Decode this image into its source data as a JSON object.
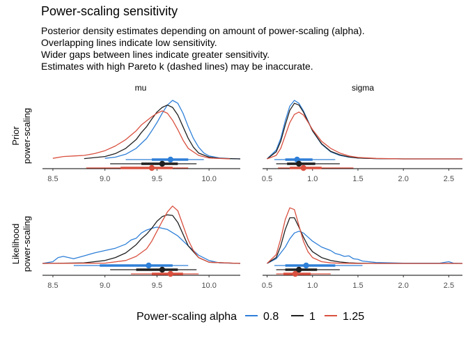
{
  "chart_data": {
    "type": "line",
    "title": "Power-scaling sensitivity",
    "subtitle": [
      "Posterior density estimates depending on amount of power-scaling (alpha).",
      "Overlapping lines indicate low sensitivity.",
      "Wider gaps between lines indicate greater sensitivity.",
      "Estimates with high Pareto k (dashed lines) may be inaccurate."
    ],
    "legend": {
      "title": "Power-scaling alpha",
      "position": "bottom",
      "entries": [
        {
          "label": "0.8",
          "color": "#2e7fd8"
        },
        {
          "label": "1",
          "color": "#1f1f1f"
        },
        {
          "label": "1.25",
          "color": "#d9503f"
        }
      ]
    },
    "columns": [
      {
        "label": "mu",
        "xlim": [
          8.4,
          10.3
        ],
        "xticks": [
          8.5,
          9.0,
          9.5,
          10.0
        ],
        "xticklabels": [
          "8.5",
          "9.0",
          "9.5",
          "10.0"
        ]
      },
      {
        "label": "sigma",
        "xlim": [
          0.45,
          2.65
        ],
        "xticks": [
          0.5,
          1.0,
          1.5,
          2.0,
          2.5
        ],
        "xticklabels": [
          "0.5",
          "1.0",
          "1.5",
          "2.0",
          "2.5"
        ]
      }
    ],
    "rows": [
      {
        "label": "Prior power-scaling",
        "label_lines": [
          "Prior",
          "power-scaling"
        ]
      },
      {
        "label": "Likelihood power-scaling",
        "label_lines": [
          "Likelihood",
          "power-scaling"
        ]
      }
    ],
    "panels": [
      {
        "row": 0,
        "col": 0,
        "series": [
          {
            "alpha": "0.8",
            "x": [
              9.0,
              9.1,
              9.2,
              9.3,
              9.4,
              9.45,
              9.5,
              9.55,
              9.6,
              9.65,
              9.7,
              9.75,
              9.8,
              9.85,
              9.9,
              9.95,
              10.0,
              10.1,
              10.2,
              10.3
            ],
            "y": [
              0.01,
              0.03,
              0.08,
              0.18,
              0.35,
              0.48,
              0.62,
              0.78,
              0.92,
              1.0,
              0.95,
              0.78,
              0.55,
              0.35,
              0.2,
              0.1,
              0.05,
              0.015,
              0.005,
              0.0
            ]
          },
          {
            "alpha": "1",
            "x": [
              8.8,
              9.0,
              9.1,
              9.2,
              9.3,
              9.35,
              9.4,
              9.45,
              9.5,
              9.55,
              9.6,
              9.65,
              9.7,
              9.75,
              9.8,
              9.85,
              9.9,
              10.0,
              10.1,
              10.3
            ],
            "y": [
              0.005,
              0.04,
              0.09,
              0.18,
              0.33,
              0.45,
              0.55,
              0.68,
              0.8,
              0.88,
              0.92,
              0.88,
              0.75,
              0.55,
              0.35,
              0.2,
              0.1,
              0.03,
              0.01,
              0.0
            ]
          },
          {
            "alpha": "1.25",
            "x": [
              8.5,
              8.6,
              8.7,
              8.8,
              8.9,
              9.0,
              9.1,
              9.2,
              9.3,
              9.35,
              9.4,
              9.45,
              9.5,
              9.55,
              9.6,
              9.65,
              9.7,
              9.75,
              9.8,
              9.9,
              10.0,
              10.2
            ],
            "y": [
              0.01,
              0.04,
              0.05,
              0.06,
              0.09,
              0.14,
              0.22,
              0.33,
              0.48,
              0.58,
              0.65,
              0.72,
              0.78,
              0.82,
              0.78,
              0.66,
              0.5,
              0.32,
              0.18,
              0.06,
              0.015,
              0.0
            ]
          }
        ],
        "intervals": [
          {
            "alpha": "0.8",
            "point": 9.63,
            "inner": [
              9.45,
              9.8
            ],
            "outer": [
              9.2,
              9.95
            ]
          },
          {
            "alpha": "1",
            "point": 9.55,
            "inner": [
              9.35,
              9.7
            ],
            "outer": [
              9.05,
              9.88
            ]
          },
          {
            "alpha": "1.25",
            "point": 9.45,
            "inner": [
              9.15,
              9.65
            ],
            "outer": [
              8.82,
              9.8
            ]
          }
        ]
      },
      {
        "row": 0,
        "col": 1,
        "series": [
          {
            "alpha": "0.8",
            "x": [
              0.5,
              0.6,
              0.65,
              0.7,
              0.75,
              0.8,
              0.85,
              0.9,
              0.95,
              1.0,
              1.1,
              1.2,
              1.3,
              1.4,
              1.5,
              1.7,
              2.0,
              2.65
            ],
            "y": [
              0.0,
              0.15,
              0.35,
              0.65,
              0.9,
              1.0,
              0.95,
              0.82,
              0.65,
              0.48,
              0.25,
              0.12,
              0.06,
              0.03,
              0.015,
              0.005,
              0.0,
              0.0
            ]
          },
          {
            "alpha": "1",
            "x": [
              0.5,
              0.6,
              0.65,
              0.7,
              0.75,
              0.8,
              0.85,
              0.9,
              0.95,
              1.0,
              1.1,
              1.2,
              1.3,
              1.4,
              1.5,
              1.7,
              2.0,
              2.65
            ],
            "y": [
              0.0,
              0.12,
              0.3,
              0.58,
              0.83,
              0.95,
              0.92,
              0.8,
              0.64,
              0.48,
              0.26,
              0.13,
              0.07,
              0.035,
              0.015,
              0.005,
              0.0,
              0.0
            ]
          },
          {
            "alpha": "1.25",
            "x": [
              0.5,
              0.6,
              0.65,
              0.7,
              0.75,
              0.8,
              0.85,
              0.9,
              0.95,
              1.0,
              1.1,
              1.2,
              1.3,
              1.4,
              1.5,
              1.7,
              2.0,
              2.65
            ],
            "y": [
              0.0,
              0.06,
              0.18,
              0.4,
              0.62,
              0.76,
              0.8,
              0.75,
              0.63,
              0.5,
              0.3,
              0.18,
              0.1,
              0.05,
              0.025,
              0.008,
              0.0,
              0.0
            ]
          }
        ],
        "intervals": [
          {
            "alpha": "0.8",
            "point": 0.83,
            "inner": [
              0.7,
              1.0
            ],
            "outer": [
              0.58,
              1.25
            ]
          },
          {
            "alpha": "1",
            "point": 0.85,
            "inner": [
              0.72,
              1.03
            ],
            "outer": [
              0.6,
              1.3
            ]
          },
          {
            "alpha": "1.25",
            "point": 0.9,
            "inner": [
              0.75,
              1.1
            ],
            "outer": [
              0.62,
              1.45
            ]
          }
        ]
      },
      {
        "row": 1,
        "col": 0,
        "series": [
          {
            "alpha": "0.8",
            "x": [
              8.4,
              8.5,
              8.55,
              8.6,
              8.7,
              8.8,
              8.9,
              9.0,
              9.1,
              9.2,
              9.25,
              9.3,
              9.35,
              9.4,
              9.45,
              9.5,
              9.6,
              9.7,
              9.8,
              9.9,
              10.0,
              10.1,
              10.3
            ],
            "y": [
              0.0,
              0.03,
              0.1,
              0.12,
              0.08,
              0.13,
              0.18,
              0.22,
              0.26,
              0.33,
              0.4,
              0.43,
              0.52,
              0.57,
              0.6,
              0.62,
              0.58,
              0.47,
              0.3,
              0.14,
              0.05,
              0.01,
              0.0
            ]
          },
          {
            "alpha": "1",
            "x": [
              8.4,
              8.6,
              8.8,
              9.0,
              9.1,
              9.2,
              9.3,
              9.35,
              9.4,
              9.45,
              9.5,
              9.55,
              9.6,
              9.65,
              9.7,
              9.75,
              9.8,
              9.9,
              10.0,
              10.3
            ],
            "y": [
              0.0,
              0.005,
              0.01,
              0.05,
              0.1,
              0.18,
              0.32,
              0.42,
              0.5,
              0.6,
              0.72,
              0.8,
              0.83,
              0.82,
              0.7,
              0.5,
              0.3,
              0.1,
              0.02,
              0.0
            ]
          },
          {
            "alpha": "1.25",
            "x": [
              8.4,
              9.0,
              9.2,
              9.3,
              9.4,
              9.45,
              9.5,
              9.55,
              9.6,
              9.65,
              9.7,
              9.75,
              9.8,
              9.85,
              9.9,
              10.0,
              10.3
            ],
            "y": [
              0.0,
              0.005,
              0.05,
              0.12,
              0.25,
              0.38,
              0.55,
              0.72,
              0.88,
              0.98,
              0.9,
              0.65,
              0.4,
              0.22,
              0.1,
              0.02,
              0.0
            ]
          }
        ],
        "intervals": [
          {
            "alpha": "0.8",
            "point": 9.42,
            "inner": [
              8.95,
              9.65
            ],
            "outer": [
              8.7,
              9.8
            ]
          },
          {
            "alpha": "1",
            "point": 9.55,
            "inner": [
              9.3,
              9.7
            ],
            "outer": [
              9.05,
              9.88
            ]
          },
          {
            "alpha": "1.25",
            "point": 9.63,
            "inner": [
              9.45,
              9.75
            ],
            "outer": [
              9.25,
              9.9
            ]
          }
        ]
      },
      {
        "row": 1,
        "col": 1,
        "series": [
          {
            "alpha": "0.8",
            "x": [
              0.5,
              0.6,
              0.7,
              0.75,
              0.8,
              0.85,
              0.9,
              0.95,
              1.0,
              1.1,
              1.2,
              1.25,
              1.3,
              1.35,
              1.4,
              1.45,
              1.5,
              1.55,
              1.7,
              2.0,
              2.4,
              2.5,
              2.55,
              2.65
            ],
            "y": [
              0.0,
              0.08,
              0.28,
              0.42,
              0.52,
              0.55,
              0.52,
              0.45,
              0.38,
              0.28,
              0.22,
              0.17,
              0.15,
              0.12,
              0.13,
              0.08,
              0.07,
              0.04,
              0.015,
              0.005,
              0.005,
              0.03,
              0.005,
              0.0
            ]
          },
          {
            "alpha": "1",
            "x": [
              0.5,
              0.6,
              0.65,
              0.7,
              0.75,
              0.8,
              0.85,
              0.9,
              0.95,
              1.0,
              1.1,
              1.2,
              1.3,
              1.4,
              1.5,
              1.7,
              2.0,
              2.65
            ],
            "y": [
              0.0,
              0.1,
              0.3,
              0.58,
              0.78,
              0.78,
              0.62,
              0.45,
              0.3,
              0.2,
              0.1,
              0.05,
              0.025,
              0.01,
              0.005,
              0.0,
              0.0,
              0.0
            ]
          },
          {
            "alpha": "1.25",
            "x": [
              0.5,
              0.6,
              0.65,
              0.7,
              0.75,
              0.8,
              0.85,
              0.9,
              0.95,
              1.0,
              1.1,
              1.2,
              1.3,
              1.5,
              2.0,
              2.65
            ],
            "y": [
              0.0,
              0.15,
              0.42,
              0.75,
              0.95,
              0.92,
              0.65,
              0.38,
              0.2,
              0.1,
              0.03,
              0.01,
              0.003,
              0.0,
              0.0,
              0.0
            ]
          }
        ],
        "intervals": [
          {
            "alpha": "0.8",
            "point": 0.93,
            "inner": [
              0.7,
              1.25
            ],
            "outer": [
              0.58,
              1.55
            ]
          },
          {
            "alpha": "1",
            "point": 0.85,
            "inner": [
              0.7,
              1.05
            ],
            "outer": [
              0.6,
              1.3
            ]
          },
          {
            "alpha": "1.25",
            "point": 0.81,
            "inner": [
              0.68,
              0.98
            ],
            "outer": [
              0.6,
              1.2
            ]
          }
        ]
      }
    ]
  }
}
